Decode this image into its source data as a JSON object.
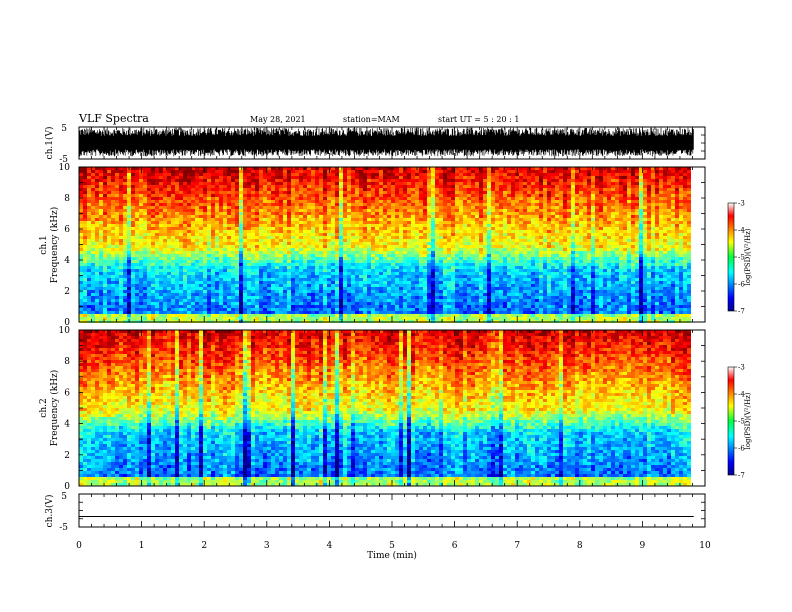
{
  "header": {
    "title": "VLF Spectra",
    "date": "May 28, 2021",
    "station": "station=MAM",
    "start": "start  UT =   5 : 20 : 1"
  },
  "colors": {
    "frame": "#000000",
    "background": "#ffffff",
    "colormap": "jet"
  },
  "chart_data": [
    {
      "type": "line",
      "name": "waveform-ch1",
      "ylabel": "ch.1(V)",
      "yticks": [
        "5",
        "-5"
      ],
      "ylim": [
        -5,
        5
      ],
      "xlim": [
        0,
        10
      ],
      "note_signal": "dense broadband waveform between about -4 and +4.5 V"
    },
    {
      "type": "heatmap",
      "name": "spectrogram-ch1",
      "ylabel_line1": "ch.1",
      "ylabel_line2": "Frequency (kHz)",
      "yticks": [
        "0",
        "2",
        "4",
        "6",
        "8",
        "10"
      ],
      "ylim": [
        0,
        10
      ],
      "xlim": [
        0,
        10
      ],
      "data_end_min": 9.82,
      "colorbar": {
        "label": "log(PSD)(V²/Hz)",
        "ticks": [
          "-3",
          "-4",
          "-5",
          "-6",
          "-7"
        ],
        "range": [
          -7,
          -3
        ]
      }
    },
    {
      "type": "heatmap",
      "name": "spectrogram-ch2",
      "ylabel_line1": "ch.2",
      "ylabel_line2": "Frequency (kHz)",
      "yticks": [
        "0",
        "2",
        "4",
        "6",
        "8",
        "10"
      ],
      "ylim": [
        0,
        10
      ],
      "xlim": [
        0,
        10
      ],
      "data_end_min": 9.82,
      "colorbar": {
        "label": "log(PSD)(V²/Hz)",
        "ticks": [
          "-3",
          "-4",
          "-5",
          "-6",
          "-7"
        ],
        "range": [
          -7,
          -3
        ]
      }
    },
    {
      "type": "line",
      "name": "waveform-ch3",
      "ylabel": "ch.3(V)",
      "yticks": [
        "5",
        "-5"
      ],
      "ylim": [
        -5,
        5
      ],
      "xlim": [
        0,
        10
      ],
      "x": [
        0,
        9.82
      ],
      "y": [
        -1.8,
        -1.8
      ]
    }
  ],
  "xaxis": {
    "label": "Time  (min)",
    "ticks": [
      "0",
      "1",
      "2",
      "3",
      "4",
      "5",
      "6",
      "7",
      "8",
      "9",
      "10"
    ]
  }
}
